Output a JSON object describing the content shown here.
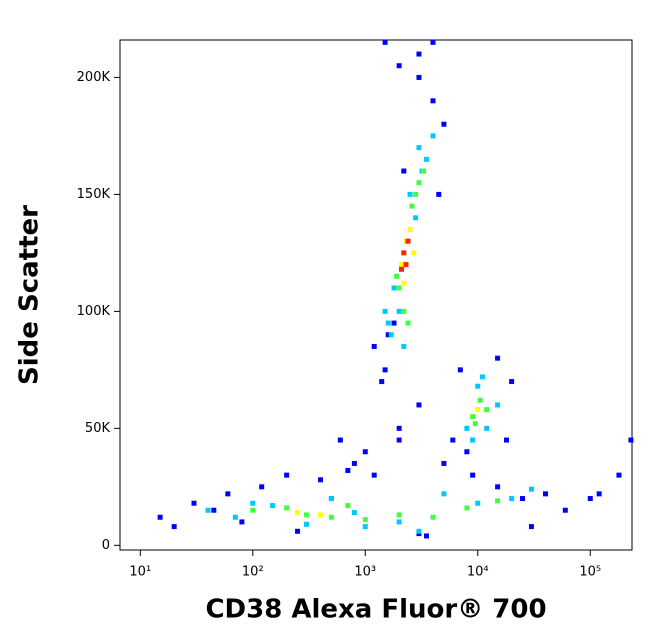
{
  "chart_data": {
    "type": "scatter",
    "xlabel": "CD38 Alexa Fluor® 700",
    "ylabel": "Side Scatter",
    "xscale": "log",
    "xlim": [
      6.6,
      235000
    ],
    "ylim": [
      -2000,
      216000
    ],
    "xticks": [
      {
        "value": 10,
        "label": "10¹"
      },
      {
        "value": 100,
        "label": "10²"
      },
      {
        "value": 1000,
        "label": "10³"
      },
      {
        "value": 10000,
        "label": "10⁴"
      },
      {
        "value": 100000,
        "label": "10⁵"
      }
    ],
    "yticks": [
      0,
      {
        "value": 50000,
        "label": "50K"
      },
      {
        "value": 100000,
        "label": "100K"
      },
      {
        "value": 150000,
        "label": "150K"
      },
      {
        "value": 200000,
        "label": "200K"
      }
    ],
    "series": [
      {
        "color": "#0000ff",
        "x": [
          15,
          20,
          30,
          45,
          60,
          80,
          120,
          200,
          400,
          700,
          1000,
          2000,
          5000,
          9000,
          15000,
          25000,
          40000,
          60000,
          100000,
          1200,
          1500,
          1800,
          2200,
          3000,
          4000,
          5000,
          1400,
          1600,
          4500,
          6000,
          7000,
          15000,
          20000,
          18000,
          8000,
          500,
          800,
          1200,
          2000,
          3000,
          600,
          250,
          3000,
          3500,
          180000,
          230000,
          120000,
          30000,
          3000,
          4000,
          2000,
          1500
        ],
        "values": [
          12000,
          8000,
          18000,
          15000,
          22000,
          10000,
          25000,
          30000,
          28000,
          32000,
          40000,
          45000,
          35000,
          30000,
          25000,
          20000,
          22000,
          15000,
          20000,
          85000,
          75000,
          95000,
          160000,
          200000,
          190000,
          180000,
          70000,
          90000,
          150000,
          45000,
          75000,
          80000,
          70000,
          45000,
          40000,
          20000,
          35000,
          30000,
          50000,
          60000,
          45000,
          6000,
          5000,
          4000,
          30000,
          45000,
          22000,
          8000,
          210000,
          215000,
          205000,
          215000
        ]
      },
      {
        "color": "#00c8ff",
        "x": [
          1600,
          1800,
          2000,
          2500,
          3000,
          3500,
          4000,
          2200,
          2800,
          1500,
          1700,
          3200,
          8000,
          10000,
          12000,
          15000,
          9000,
          11000,
          40,
          70,
          100,
          150,
          300,
          500,
          1000,
          2000,
          5000,
          10000,
          20000,
          30000,
          800,
          3000
        ],
        "values": [
          95000,
          110000,
          100000,
          150000,
          170000,
          165000,
          175000,
          85000,
          140000,
          100000,
          90000,
          160000,
          50000,
          68000,
          50000,
          60000,
          45000,
          72000,
          15000,
          12000,
          18000,
          17000,
          9000,
          20000,
          8000,
          10000,
          22000,
          18000,
          20000,
          24000,
          14000,
          6000
        ]
      },
      {
        "color": "#40ff40",
        "x": [
          2000,
          2200,
          2600,
          3000,
          3300,
          2400,
          1900,
          2800,
          9000,
          10500,
          12000,
          9500,
          100,
          200,
          300,
          500,
          1000,
          2000,
          4000,
          8000,
          15000,
          250,
          700
        ],
        "values": [
          110000,
          100000,
          145000,
          155000,
          160000,
          95000,
          115000,
          150000,
          55000,
          62000,
          58000,
          52000,
          15000,
          16000,
          13000,
          12000,
          11000,
          13000,
          12000,
          16000,
          19000,
          14000,
          17000
        ]
      },
      {
        "color": "#ffff00",
        "x": [
          2100,
          2300,
          2500,
          2700,
          2200,
          10000,
          250,
          400
        ],
        "values": [
          120000,
          130000,
          135000,
          125000,
          112000,
          58000,
          14000,
          13000
        ]
      },
      {
        "color": "#ff2000",
        "x": [
          2200,
          2400,
          2300,
          2100
        ],
        "values": [
          125000,
          130000,
          120000,
          118000
        ]
      }
    ]
  }
}
